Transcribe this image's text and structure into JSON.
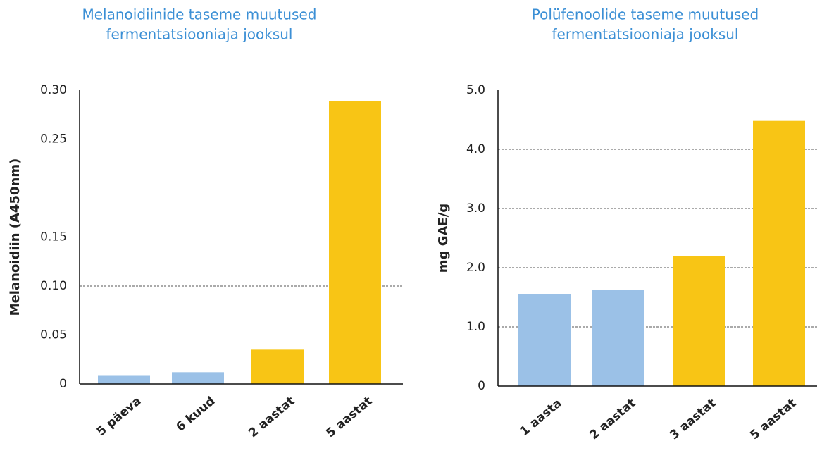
{
  "chart_data": [
    {
      "type": "bar",
      "title": [
        "Melanoidiinide taseme muutused",
        "fermentatsiooniaja jooksul"
      ],
      "y_label": "Melanoidiin (A450nm)",
      "categories": [
        "5 päeva",
        "6 kuud",
        "2 aastat",
        "5 aastat"
      ],
      "values": [
        0.009,
        0.012,
        0.035,
        0.289
      ],
      "colors": [
        "#9bc1e7",
        "#9bc1e7",
        "#f8c515",
        "#f8c515"
      ],
      "ylim": [
        0,
        0.3
      ],
      "yticks": [
        0,
        0.05,
        {
          "value": 0.1,
          "label": "0.10"
        },
        0.15,
        0.25,
        {
          "value": 0.3,
          "label": "0.30"
        }
      ],
      "grid": true
    },
    {
      "type": "bar",
      "title": [
        "Polüfenoolide taseme muutused",
        "fermentatsiooniaja jooksul"
      ],
      "y_label": "mg GAE/g",
      "categories": [
        "1 aasta",
        "2 aastat",
        "3 aastat",
        "5 aastat"
      ],
      "values": [
        1.55,
        1.63,
        2.2,
        4.48
      ],
      "colors": [
        "#9bc1e7",
        "#9bc1e7",
        "#f8c515",
        "#f8c515"
      ],
      "ylim": [
        0,
        5
      ],
      "yticks": [
        0,
        {
          "value": 1,
          "label": "1.0"
        },
        {
          "value": 2,
          "label": "2.0"
        },
        {
          "value": 3,
          "label": "3.0"
        },
        {
          "value": 4,
          "label": "4.0"
        },
        {
          "value": 5,
          "label": "5.0"
        }
      ],
      "grid": true
    }
  ]
}
